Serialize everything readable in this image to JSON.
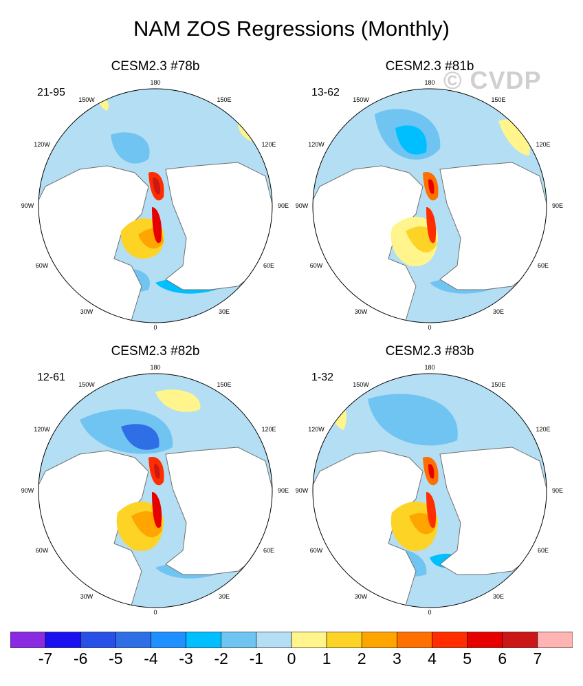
{
  "title": "NAM ZOS Regressions (Monthly)",
  "watermark": "© CVDP",
  "colors": {
    "land": "#ffffff",
    "coast": "#6e6e6e",
    "levels": [
      "#8a2be2",
      "#1a10f0",
      "#2850e6",
      "#2f6fe6",
      "#1e90ff",
      "#00bfff",
      "#70c4f2",
      "#b3def3",
      "#fff58c",
      "#fdd326",
      "#ffa500",
      "#ff7000",
      "#ff2d00",
      "#e60000",
      "#cc1717",
      "#ffb4b4"
    ]
  },
  "chart_data": {
    "type": "map",
    "projection": "north-polar-stereographic",
    "colorbar": {
      "ticks": [
        "-7",
        "-6",
        "-5",
        "-4",
        "-3",
        "-2",
        "-1",
        "0",
        "1",
        "2",
        "3",
        "4",
        "5",
        "6",
        "7"
      ]
    },
    "panels": [
      {
        "title": "CESM2.3 #78b",
        "range": "21-95",
        "lon_labels": [
          "180",
          "150E",
          "120E",
          "90E",
          "60E",
          "30E",
          "0",
          "30W",
          "60W",
          "90W",
          "120W",
          "150W"
        ]
      },
      {
        "title": "CESM2.3 #81b",
        "range": "13-62",
        "lon_labels": [
          "180",
          "150E",
          "120E",
          "90E",
          "60E",
          "30E",
          "0",
          "30W",
          "60W",
          "90W",
          "120W",
          "150W"
        ]
      },
      {
        "title": "CESM2.3 #82b",
        "range": "12-61",
        "lon_labels": [
          "180",
          "150E",
          "120E",
          "90E",
          "60E",
          "30E",
          "0",
          "30W",
          "60W",
          "90W",
          "120W",
          "150W"
        ]
      },
      {
        "title": "CESM2.3 #83b",
        "range": "1-32",
        "lon_labels": [
          "180",
          "150E",
          "120E",
          "90E",
          "60E",
          "30E",
          "0",
          "30W",
          "60W",
          "90W",
          "120W",
          "150W"
        ]
      }
    ]
  }
}
